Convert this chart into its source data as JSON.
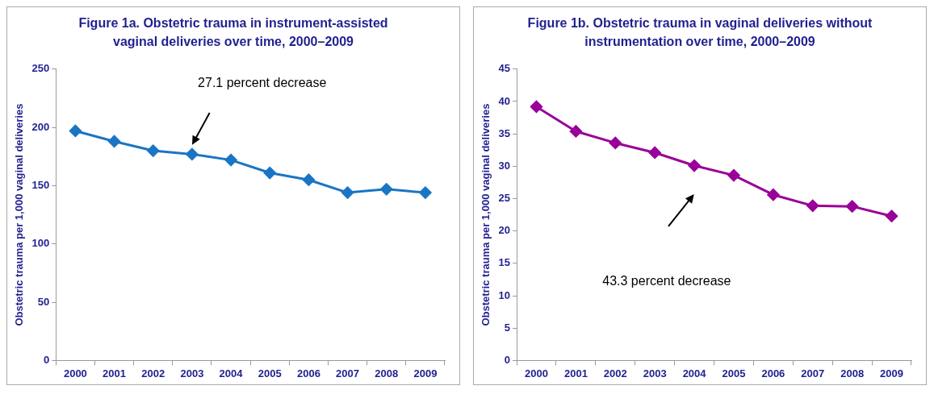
{
  "chart_data": [
    {
      "type": "line",
      "title": "Figure 1a. Obstetric trauma in instrument-assisted vaginal deliveries over time, 2000–2009",
      "ylabel": "Obstetric trauma per 1,000 vaginal deliveries",
      "categories": [
        "2000",
        "2001",
        "2002",
        "2003",
        "2004",
        "2005",
        "2006",
        "2007",
        "2008",
        "2009"
      ],
      "series": [
        {
          "color": "#1a75c4",
          "values": [
            197,
            188,
            180,
            177,
            172,
            161,
            155,
            144,
            147,
            144
          ]
        }
      ],
      "ylim": [
        0,
        250
      ],
      "yticks": [
        0,
        50,
        100,
        150,
        200,
        250
      ],
      "grid": false,
      "legend": false,
      "marker": "diamond",
      "annotations": [
        "27.1 percent decrease"
      ]
    },
    {
      "type": "line",
      "title": "Figure 1b. Obstetric trauma in vaginal deliveries without instrumentation over time, 2000–2009",
      "ylabel": "Obstetric trauma per 1,000 vaginal deliveries",
      "categories": [
        "2000",
        "2001",
        "2002",
        "2003",
        "2004",
        "2005",
        "2006",
        "2007",
        "2008",
        "2009"
      ],
      "series": [
        {
          "color": "#990099",
          "values": [
            39.2,
            35.4,
            33.6,
            32.1,
            30.1,
            28.6,
            25.6,
            23.9,
            23.8,
            22.3
          ]
        }
      ],
      "ylim": [
        0,
        45
      ],
      "yticks": [
        0,
        5,
        10,
        15,
        20,
        25,
        30,
        35,
        40,
        45
      ],
      "grid": false,
      "legend": false,
      "marker": "diamond",
      "annotations": [
        "43.3 percent decrease"
      ]
    }
  ]
}
